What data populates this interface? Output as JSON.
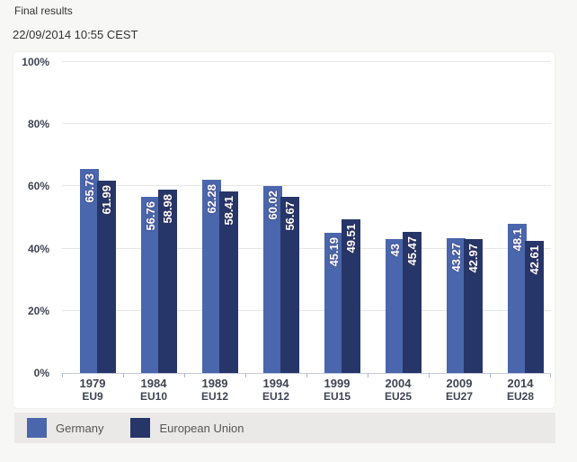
{
  "header": {
    "title": "Final results",
    "timestamp": "22/09/2014 10:55 CEST"
  },
  "chart_data": {
    "type": "bar",
    "categories": [
      {
        "year": "1979",
        "members": "EU9"
      },
      {
        "year": "1984",
        "members": "EU10"
      },
      {
        "year": "1989",
        "members": "EU12"
      },
      {
        "year": "1994",
        "members": "EU12"
      },
      {
        "year": "1999",
        "members": "EU15"
      },
      {
        "year": "2004",
        "members": "EU25"
      },
      {
        "year": "2009",
        "members": "EU27"
      },
      {
        "year": "2014",
        "members": "EU28"
      }
    ],
    "series": [
      {
        "name": "Germany",
        "color": "#4a66ac",
        "values": [
          65.73,
          56.76,
          62.28,
          60.02,
          45.19,
          43,
          43.27,
          48.1
        ]
      },
      {
        "name": "European Union",
        "color": "#273668",
        "values": [
          61.99,
          58.98,
          58.41,
          56.67,
          49.51,
          45.47,
          42.97,
          42.61
        ]
      }
    ],
    "value_label_style": "white-rotated-90-inside-bar-top",
    "yticks": [
      0,
      20,
      40,
      60,
      80,
      100
    ],
    "ytick_suffix": "%",
    "ylim": [
      0,
      100
    ],
    "grid": true,
    "legend_position": "bottom"
  }
}
